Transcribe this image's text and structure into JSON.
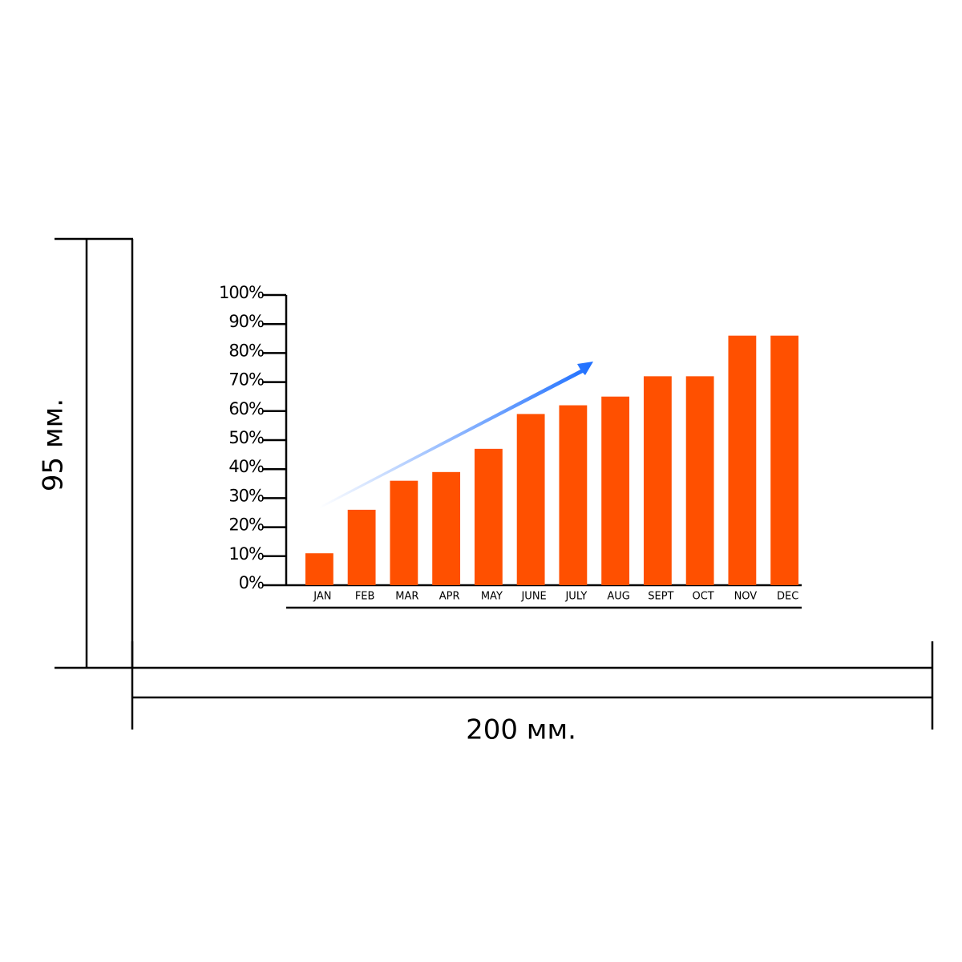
{
  "chart_data": {
    "type": "bar",
    "categories": [
      "JAN",
      "FEB",
      "MAR",
      "APR",
      "MAY",
      "JUNE",
      "JULY",
      "AUG",
      "SEPT",
      "OCT",
      "NOV",
      "DEC"
    ],
    "values": [
      11,
      26,
      36,
      39,
      47,
      59,
      62,
      65,
      72,
      72,
      86,
      86
    ],
    "color": "#ff5000",
    "ylim": [
      0,
      100
    ],
    "yticks": [
      {
        "value": 0,
        "label": "0%"
      },
      {
        "value": 10,
        "label": "10%"
      },
      {
        "value": 20,
        "label": "20%"
      },
      {
        "value": 30,
        "label": "30%"
      },
      {
        "value": 40,
        "label": "40%"
      },
      {
        "value": 50,
        "label": "50%"
      },
      {
        "value": 60,
        "label": "60%"
      },
      {
        "value": 70,
        "label": "70%"
      },
      {
        "value": 80,
        "label": "80%"
      },
      {
        "value": 90,
        "label": "90%"
      },
      {
        "value": 100,
        "label": "100%"
      }
    ]
  },
  "dimensions": {
    "height": "95 мм.",
    "width": "200 мм."
  }
}
